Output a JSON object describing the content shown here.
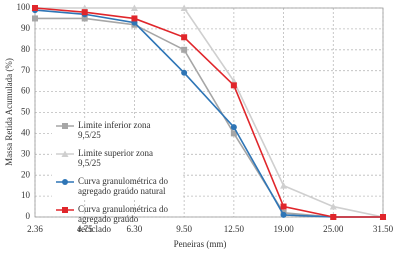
{
  "chart_data": {
    "type": "line",
    "x_label": "Peneiras (mm)",
    "y_label": "Massa Retida Acumulada (%)",
    "categories": [
      "2.36",
      "4.75",
      "6.30",
      "9.50",
      "12.50",
      "19.00",
      "25.00",
      "31.50"
    ],
    "ylim": [
      0,
      100
    ],
    "yticks": [
      0,
      10,
      20,
      30,
      40,
      50,
      60,
      70,
      80,
      90,
      100
    ],
    "grid": true,
    "series": [
      {
        "name": "Limite inferior zona 9,5/25",
        "color": "#a6a6a6",
        "marker": "square",
        "values": [
          95,
          95,
          92,
          80,
          40,
          2,
          0,
          0
        ]
      },
      {
        "name": "Limite superior zona 9,5/25",
        "color": "#cfcfcf",
        "marker": "triangle",
        "values": [
          100,
          100,
          100,
          100,
          65,
          15,
          5,
          0
        ]
      },
      {
        "name": "Curva granulométrica do agregado graúdo natural",
        "color": "#2e75b6",
        "marker": "circle",
        "values": [
          99,
          97,
          93,
          69,
          43,
          1,
          0,
          0
        ]
      },
      {
        "name": "Curva granulométrica do agregado graúdo reciclado",
        "color": "#e0262b",
        "marker": "square",
        "values": [
          100,
          98,
          95,
          86,
          63,
          5,
          0,
          0
        ]
      }
    ]
  }
}
